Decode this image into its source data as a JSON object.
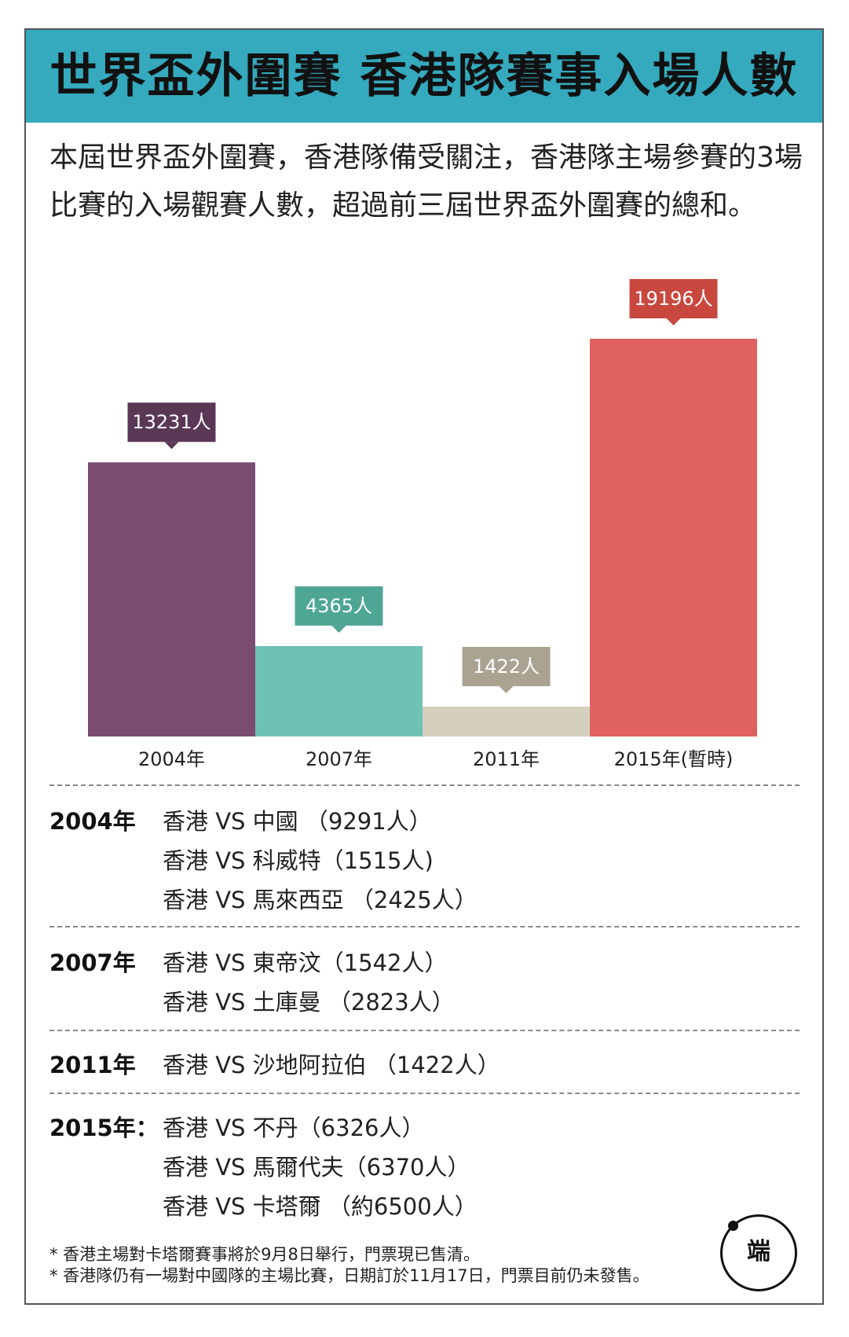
{
  "title": "世界盃外圍賽  香港隊賽事入場人數",
  "intro": "本屆世界盃外圍賽，香港隊備受關注，香港隊主場參賽的3場比賽的入場觀賽人數，超過前三屆世界盃外圍賽的總和。",
  "colors": {
    "accent": "#35a9bd",
    "bar_2004": "#7a4c70",
    "bar_2007": "#6fc1b4",
    "bar_2011": "#d5cfbd",
    "bar_2015": "#df625f",
    "label_2004": "#5b3756",
    "label_2007": "#4fa695",
    "label_2011": "#aaa392",
    "label_2015": "#c8483f"
  },
  "chart_data": {
    "type": "bar",
    "title": "香港隊賽事入場人數",
    "categories": [
      "2004年",
      "2007年",
      "2011年",
      "2015年(暫時)"
    ],
    "values": [
      13231,
      4365,
      1422,
      19196
    ],
    "data_labels": [
      "13231人",
      "4365人",
      "1422人",
      "19196人"
    ],
    "unit": "人",
    "ylim": [
      0,
      19196
    ],
    "xlabel": "",
    "ylabel": "",
    "grid": false
  },
  "breakdown": [
    {
      "year": "2004年",
      "matches": [
        "香港 VS 中國 （9291人）",
        "香港 VS 科威特（1515人)",
        "香港 VS 馬來西亞 （2425人）"
      ]
    },
    {
      "year": "2007年",
      "matches": [
        "香港 VS 東帝汶（1542人）",
        "香港 VS 土庫曼 （2823人）"
      ]
    },
    {
      "year": "2011年",
      "matches": [
        "香港 VS 沙地阿拉伯 （1422人）"
      ]
    },
    {
      "year": "2015年：",
      "matches": [
        "香港 VS 不丹（6326人）",
        "香港 VS 馬爾代夫（6370人）",
        "香港 VS 卡塔爾 （約6500人）"
      ]
    }
  ],
  "notes": [
    "* 香港主場對卡塔爾賽事將於9月8日舉行，門票現已售清。",
    "* 香港隊仍有一場對中國隊的主場比賽，日期訂於11月17日，門票目前仍未發售。"
  ],
  "logo": {
    "text": "端"
  }
}
